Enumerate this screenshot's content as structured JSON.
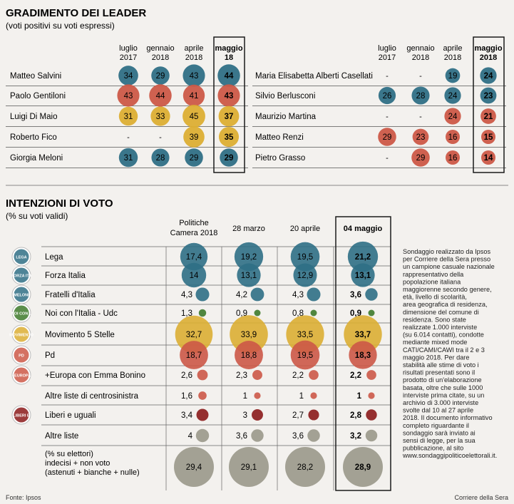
{
  "colors": {
    "blue": "#2f6f85",
    "red": "#cc5847",
    "yellow": "#dcae33",
    "darkred": "#8b1a1a",
    "gray": "#9a9889",
    "green": "#3e7a2b",
    "line": "#444444",
    "bg": "#f3f1ee"
  },
  "chart_data": [
    {
      "type": "table",
      "title": "GRADIMENTO DEI LEADER",
      "subtitle": "(voti positivi su voti espressi)",
      "columns": [
        {
          "line1": "luglio",
          "line2": "2017"
        },
        {
          "line1": "gennaio",
          "line2": "2018"
        },
        {
          "line1": "aprile",
          "line2": "2018"
        },
        {
          "line1": "maggio",
          "line2": "18"
        }
      ],
      "columns_right": [
        {
          "line1": "luglio",
          "line2": "2017"
        },
        {
          "line1": "gennaio",
          "line2": "2018"
        },
        {
          "line1": "aprile",
          "line2": "2018"
        },
        {
          "line1": "maggio",
          "line2": "2018"
        }
      ],
      "leaders_left": [
        {
          "name": "Matteo Salvini",
          "color": "blue",
          "values": [
            "34",
            "29",
            "43",
            "44"
          ]
        },
        {
          "name": "Paolo Gentiloni",
          "color": "red",
          "values": [
            "43",
            "44",
            "41",
            "43"
          ]
        },
        {
          "name": "Luigi Di Maio",
          "color": "yellow",
          "values": [
            "31",
            "33",
            "45",
            "37"
          ]
        },
        {
          "name": "Roberto Fico",
          "color": "yellow",
          "values": [
            "-",
            "-",
            "39",
            "35"
          ]
        },
        {
          "name": "Giorgia Meloni",
          "color": "blue",
          "values": [
            "31",
            "28",
            "29",
            "29"
          ]
        }
      ],
      "leaders_right": [
        {
          "name": "Maria Elisabetta Alberti Casellati",
          "color": "blue",
          "values": [
            "-",
            "-",
            "19",
            "24"
          ]
        },
        {
          "name": "Silvio Berlusconi",
          "color": "blue",
          "values": [
            "26",
            "28",
            "24",
            "23"
          ]
        },
        {
          "name": "Maurizio Martina",
          "color": "red",
          "values": [
            "-",
            "-",
            "24",
            "21"
          ]
        },
        {
          "name": "Matteo Renzi",
          "color": "red",
          "values": [
            "29",
            "23",
            "16",
            "15"
          ]
        },
        {
          "name": "Pietro Grasso",
          "color": "red",
          "values": [
            "-",
            "29",
            "16",
            "14"
          ]
        }
      ]
    },
    {
      "type": "table",
      "title": "INTENZIONI DI VOTO",
      "subtitle": "(% su voti validi)",
      "columns": [
        {
          "line1": "Politiche",
          "line2": "Camera 2018"
        },
        {
          "line1": "28 marzo",
          "line2": ""
        },
        {
          "line1": "20 aprile",
          "line2": ""
        },
        {
          "line1": "04 maggio",
          "line2": ""
        }
      ],
      "parties": [
        {
          "name": "Lega",
          "color": "blue",
          "logo": "LEGA",
          "values": [
            "17,4",
            "19,2",
            "19,5",
            "21,2"
          ]
        },
        {
          "name": "Forza Italia",
          "color": "blue",
          "logo": "FORZA ITALIA",
          "values": [
            "14",
            "13,1",
            "12,9",
            "13,1"
          ]
        },
        {
          "name": "Fratelli d'Italia",
          "color": "blue",
          "logo": "MELONI",
          "values": [
            "4,3",
            "4,2",
            "4,3",
            "3,6"
          ]
        },
        {
          "name": "Noi con l'Italia - Udc",
          "color": "green",
          "logo": "NOI CON L'ITALIA",
          "values": [
            "1,3",
            "0,9",
            "0,8",
            "0,9"
          ]
        },
        {
          "name": "Movimento 5 Stelle",
          "color": "yellow",
          "logo": "MOVIMENTO 5 STELLE",
          "values": [
            "32,7",
            "33,9",
            "33,5",
            "33,7"
          ]
        },
        {
          "name": "Pd",
          "color": "red",
          "logo": "PD",
          "values": [
            "18,7",
            "18,8",
            "19,5",
            "18,3"
          ]
        },
        {
          "name": "+Europa con Emma Bonino",
          "color": "red",
          "logo": "+EUROPA",
          "values": [
            "2,6",
            "2,3",
            "2,2",
            "2,2"
          ]
        },
        {
          "name": "Altre liste di centrosinistra",
          "color": "red",
          "logo": "",
          "values": [
            "1,6",
            "1",
            "1",
            "1"
          ]
        },
        {
          "name": "Liberi e uguali",
          "color": "darkred",
          "logo": "LIBERI E UGUALI",
          "values": [
            "3,4",
            "3",
            "2,7",
            "2,8"
          ]
        },
        {
          "name": "Altre liste",
          "color": "gray",
          "logo": "",
          "values": [
            "4",
            "3,6",
            "3,6",
            "3,2"
          ]
        }
      ],
      "electors_label": [
        "(% su elettori)",
        "indecisi + non voto",
        "(astenuti + bianche + nulle)"
      ],
      "electors_values": [
        "29,4",
        "29,1",
        "28,2",
        "28,9"
      ]
    }
  ],
  "note": "Sondaggio realizzato da Ipsos per Corriere della Sera presso un campione casuale nazionale rappresentativo della popolazione italiana maggiorenne secondo genere, età, livello di scolarità, area geografica di residenza, dimensione del comune di residenza. Sono state realizzate 1.000 interviste (su 6.014 contatti), condotte mediante mixed mode CATI/CAMI/CAWI tra il 2 e 3 maggio 2018. Per dare stabilità alle stime di voto i risultati presentati sono il prodotto di un'elaborazione basata, oltre che sulle 1000 interviste prima citate, su un archivio di 3.000 interviste svolte dal 10 al 27 aprile 2018. Il documento informativo completo riguardante il sondaggio sarà inviato ai sensi di legge, per la sua pubblicazione, al sito www.sondaggipoliticoelettorali.it.",
  "source": "Fonte: Ipsos",
  "credit": "Corriere della Sera"
}
